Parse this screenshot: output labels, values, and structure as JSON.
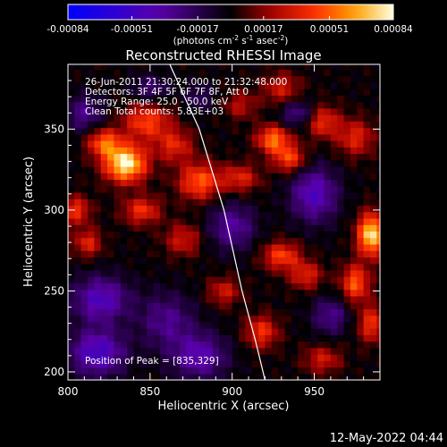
{
  "chart_data": {
    "type": "heatmap",
    "title": "Reconstructed RHESSI Image",
    "xlabel": "Heliocentric X (arcsec)",
    "ylabel": "Heliocentric Y (arcsec)",
    "xlim": [
      800,
      990
    ],
    "ylim": [
      195,
      390
    ],
    "xticks": [
      800,
      850,
      900,
      950
    ],
    "yticks": [
      200,
      250,
      300,
      350
    ],
    "grid": false,
    "colorbar": {
      "range": [
        -0.00084,
        0.00084
      ],
      "ticks": [
        "-0.00084",
        "-0.00051",
        "-0.00017",
        "0.00017",
        "0.00051",
        "0.00084"
      ],
      "unit_label": {
        "prefix": "(photons cm",
        "sup1": "-2",
        "mid1": " s",
        "sup2": "-1",
        "mid2": " asec",
        "sup3": "-2",
        "suffix": ")"
      },
      "colors": [
        "#0000ff",
        "#5a00a8",
        "#000000",
        "#a00000",
        "#ff3000",
        "#ffa000",
        "#ffffe0"
      ]
    },
    "info_lines": [
      "26-Jun-2011 21:30:24.000 to 21:32:48.000",
      "Detectors: 3F 4F 5F 6F 7F 8F, Att 0",
      "Energy Range: 25.0 - 50.0 keV",
      "Clean     Total counts: 5.83E+03"
    ],
    "peak_label": "Position of Peak = [835,329]",
    "peak": [
      835,
      329
    ],
    "limb": [
      [
        862,
        390
      ],
      [
        880,
        350
      ],
      [
        895,
        300
      ],
      [
        906,
        250
      ],
      [
        914,
        220
      ],
      [
        920,
        195
      ]
    ],
    "sources": [
      {
        "x": 835,
        "y": 329,
        "v": 0.00084,
        "sx": 9,
        "sy": 8
      },
      {
        "x": 822,
        "y": 342,
        "v": 0.0005,
        "sx": 7,
        "sy": 6
      },
      {
        "x": 848,
        "y": 355,
        "v": 0.00045,
        "sx": 10,
        "sy": 8
      },
      {
        "x": 865,
        "y": 340,
        "v": 0.00035,
        "sx": 8,
        "sy": 7
      },
      {
        "x": 880,
        "y": 318,
        "v": 0.0005,
        "sx": 9,
        "sy": 8
      },
      {
        "x": 905,
        "y": 320,
        "v": 0.00035,
        "sx": 8,
        "sy": 6
      },
      {
        "x": 925,
        "y": 344,
        "v": 0.00055,
        "sx": 7,
        "sy": 6
      },
      {
        "x": 935,
        "y": 332,
        "v": 0.00045,
        "sx": 7,
        "sy": 6
      },
      {
        "x": 955,
        "y": 355,
        "v": 0.0004,
        "sx": 7,
        "sy": 7
      },
      {
        "x": 975,
        "y": 345,
        "v": 0.00035,
        "sx": 8,
        "sy": 8
      },
      {
        "x": 985,
        "y": 285,
        "v": 0.0008,
        "sx": 6,
        "sy": 9
      },
      {
        "x": 975,
        "y": 255,
        "v": 0.0005,
        "sx": 6,
        "sy": 8
      },
      {
        "x": 985,
        "y": 230,
        "v": 0.0004,
        "sx": 6,
        "sy": 8
      },
      {
        "x": 930,
        "y": 272,
        "v": 0.00045,
        "sx": 8,
        "sy": 6
      },
      {
        "x": 945,
        "y": 260,
        "v": 0.00035,
        "sx": 7,
        "sy": 6
      },
      {
        "x": 918,
        "y": 225,
        "v": 0.0004,
        "sx": 7,
        "sy": 7
      },
      {
        "x": 895,
        "y": 250,
        "v": 0.0003,
        "sx": 7,
        "sy": 6
      },
      {
        "x": 870,
        "y": 282,
        "v": 0.0003,
        "sx": 8,
        "sy": 7
      },
      {
        "x": 845,
        "y": 300,
        "v": 0.0004,
        "sx": 8,
        "sy": 6
      },
      {
        "x": 805,
        "y": 300,
        "v": 0.0004,
        "sx": 6,
        "sy": 6
      },
      {
        "x": 812,
        "y": 280,
        "v": 0.00035,
        "sx": 6,
        "sy": 6
      },
      {
        "x": 955,
        "y": 208,
        "v": 0.0003,
        "sx": 8,
        "sy": 6
      },
      {
        "x": 930,
        "y": 375,
        "v": 0.0003,
        "sx": 8,
        "sy": 7
      },
      {
        "x": 905,
        "y": 365,
        "v": 0.00025,
        "sx": 7,
        "sy": 6
      },
      {
        "x": 820,
        "y": 245,
        "v": -0.00045,
        "sx": 12,
        "sy": 10
      },
      {
        "x": 818,
        "y": 212,
        "v": -0.0005,
        "sx": 12,
        "sy": 10
      },
      {
        "x": 860,
        "y": 232,
        "v": -0.0003,
        "sx": 12,
        "sy": 12
      },
      {
        "x": 900,
        "y": 290,
        "v": -0.00035,
        "sx": 10,
        "sy": 10
      },
      {
        "x": 880,
        "y": 210,
        "v": -0.0004,
        "sx": 12,
        "sy": 10
      },
      {
        "x": 950,
        "y": 310,
        "v": -0.00045,
        "sx": 10,
        "sy": 12
      },
      {
        "x": 960,
        "y": 235,
        "v": -0.0003,
        "sx": 8,
        "sy": 8
      },
      {
        "x": 850,
        "y": 375,
        "v": -0.00025,
        "sx": 8,
        "sy": 6
      },
      {
        "x": 940,
        "y": 360,
        "v": -0.0003,
        "sx": 8,
        "sy": 6
      },
      {
        "x": 810,
        "y": 360,
        "v": -0.0003,
        "sx": 8,
        "sy": 8
      },
      {
        "x": 880,
        "y": 370,
        "v": -0.0002,
        "sx": 6,
        "sy": 6
      }
    ]
  },
  "footer": {
    "timestamp": "12-May-2022 04:44"
  }
}
